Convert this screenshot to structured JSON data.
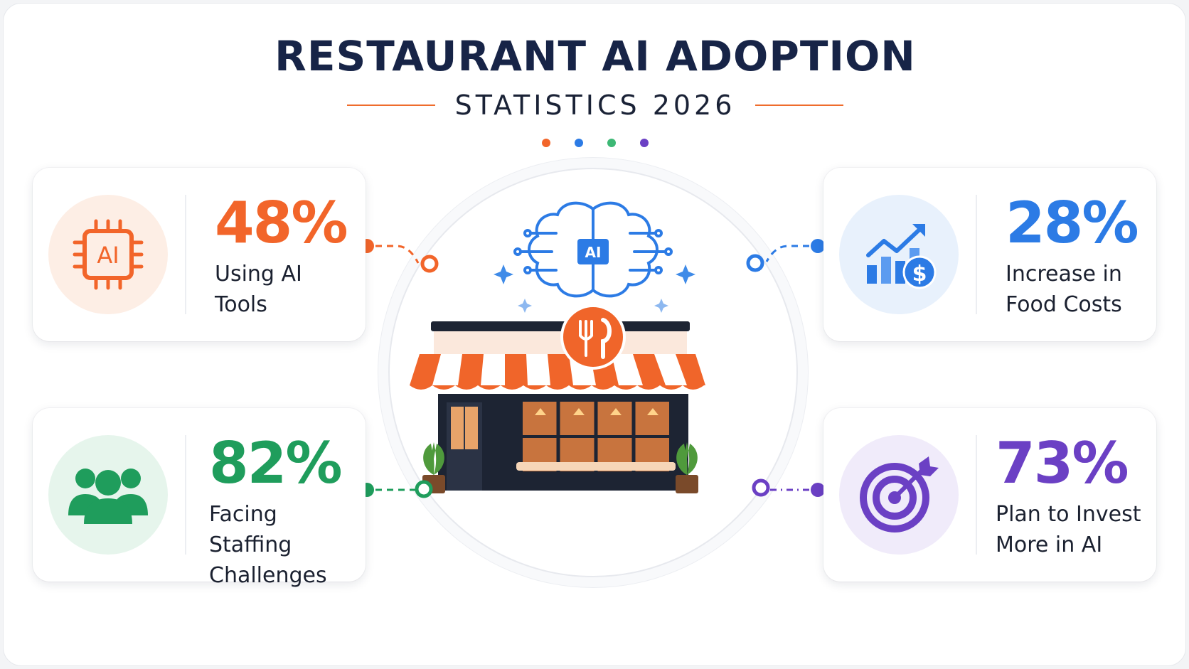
{
  "title": "RESTAURANT AI ADOPTION",
  "subtitle": "STATISTICS 2026",
  "colors": {
    "orange": "#f2652a",
    "blue": "#2c7be5",
    "green": "#1f9d5c",
    "purple": "#6b40c4",
    "navy": "#172447"
  },
  "stats": [
    {
      "value": "48%",
      "label_line1": "Using AI",
      "label_line2": "Tools",
      "icon": "ai-chip-icon",
      "chip_text": "AI"
    },
    {
      "value": "82%",
      "label_line1": "Facing Staffing",
      "label_line2": "Challenges",
      "icon": "people-group-icon"
    },
    {
      "value": "28%",
      "label_line1": "Increase in",
      "label_line2": "Food Costs",
      "icon": "growth-chart-dollar-icon"
    },
    {
      "value": "73%",
      "label_line1": "Plan to Invest",
      "label_line2": "More in AI",
      "icon": "target-arrow-icon"
    }
  ],
  "center": {
    "brain_text": "AI",
    "icons": [
      "ai-brain-icon",
      "restaurant-storefront-icon",
      "fork-knife-icon"
    ]
  }
}
